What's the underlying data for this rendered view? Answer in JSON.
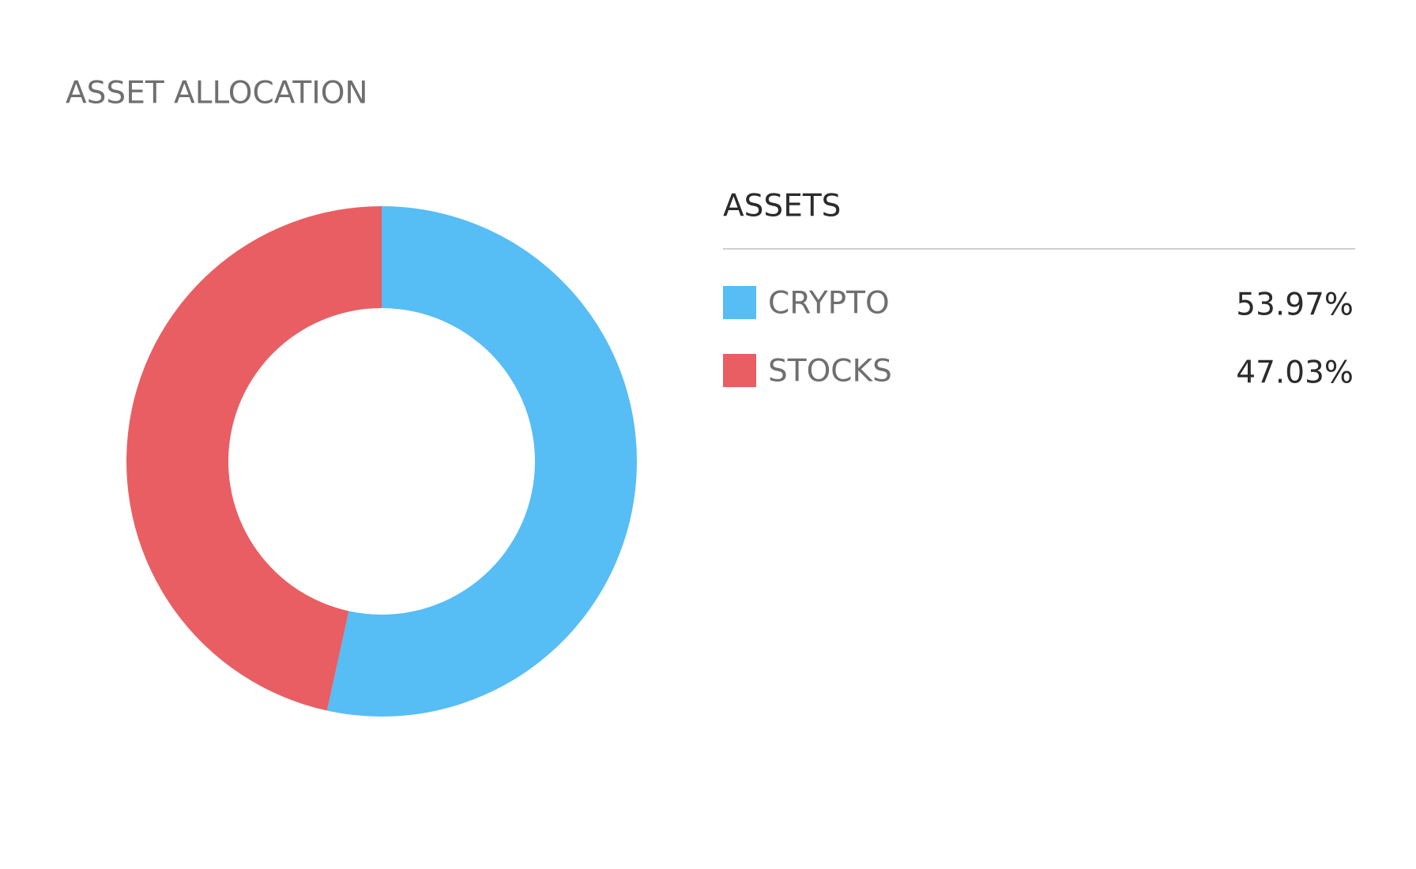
{
  "chart_data": {
    "type": "pie",
    "donut": true,
    "title": "ASSET ALLOCATION",
    "legend_title": "ASSETS",
    "categories": [
      "CRYPTO",
      "STOCKS"
    ],
    "values": [
      53.97,
      47.03
    ],
    "value_labels": [
      "53.97%",
      "47.03%"
    ],
    "colors": [
      "#56bdf5",
      "#e95e62"
    ]
  }
}
